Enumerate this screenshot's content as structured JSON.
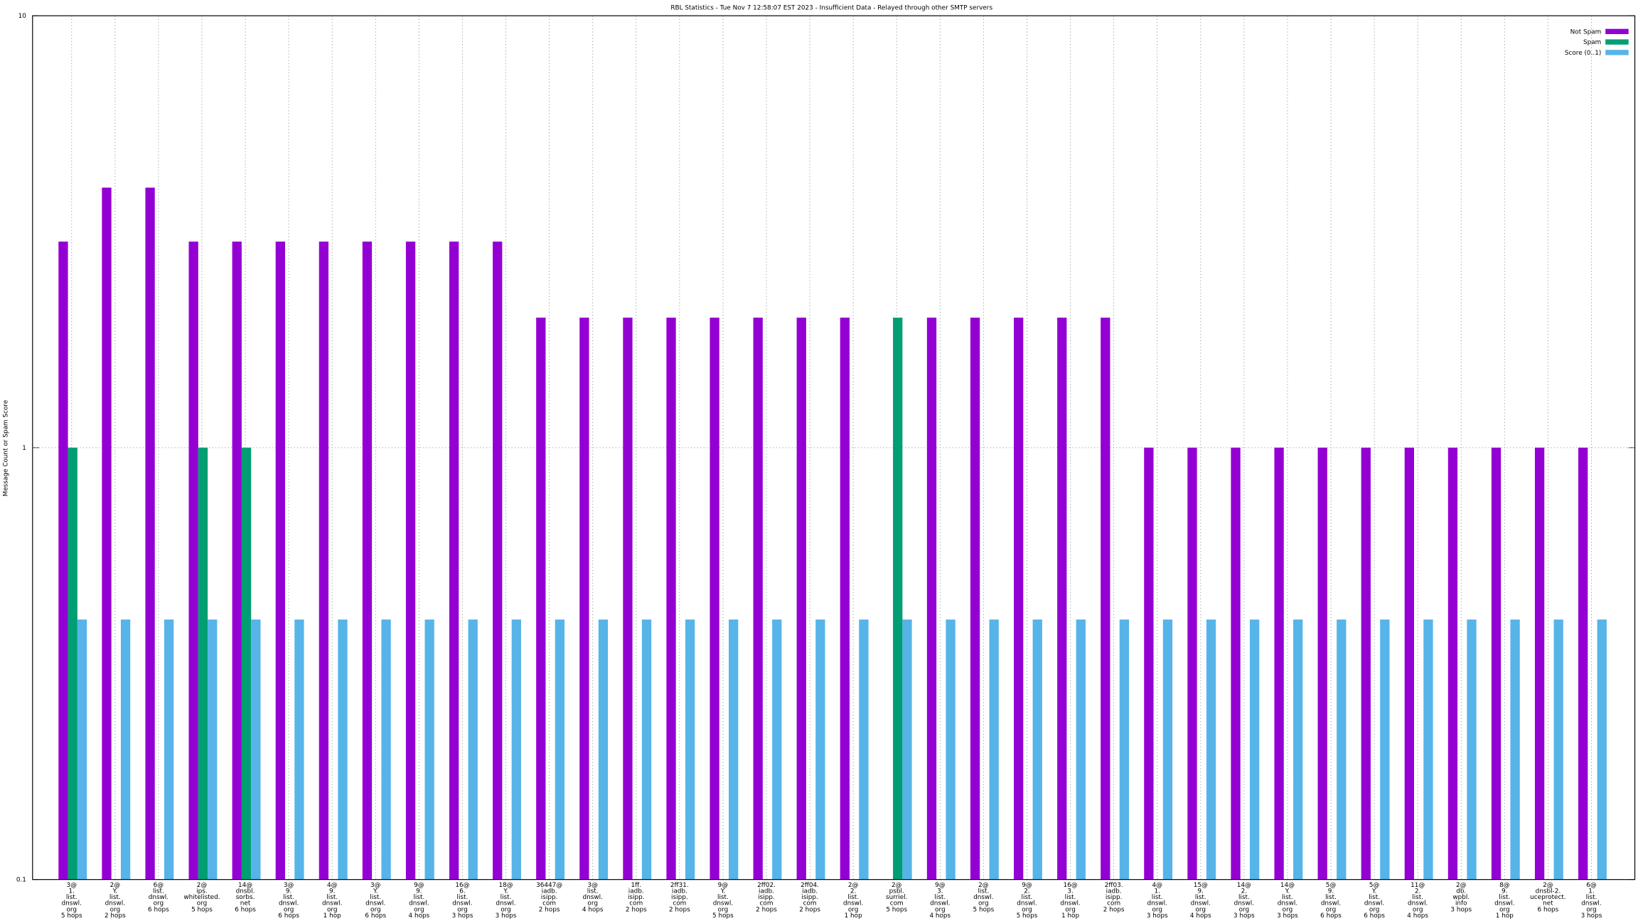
{
  "chart_data": {
    "type": "bar",
    "title": "RBL Statistics - Tue Nov  7 12:58:07 EST 2023 - Insufficient Data - Relayed through other SMTP servers",
    "y_label": "Message Count or Spam Score",
    "ylim": [
      0.1,
      10
    ],
    "yticks": [
      0.1,
      1,
      10
    ],
    "log_y": true,
    "grid": true,
    "legend": "top-right",
    "categories": [
      [
        "3@",
        "1.",
        "list.",
        "dnswl.",
        "org",
        "5 hops"
      ],
      [
        "2@",
        "Y.",
        "list.",
        "dnswl.",
        "org",
        "2 hops"
      ],
      [
        "6@",
        "list.",
        "dnswl.",
        "org",
        "6 hops"
      ],
      [
        "2@",
        "ips.",
        "whitelisted.",
        "org",
        "5 hops"
      ],
      [
        "14@",
        "dnsbl.",
        "sorbs.",
        "net",
        "6 hops"
      ],
      [
        "3@",
        "9.",
        "list.",
        "dnswl.",
        "org",
        "6 hops"
      ],
      [
        "4@",
        "9.",
        "list.",
        "dnswl.",
        "org",
        "1 hop"
      ],
      [
        "3@",
        "Y.",
        "list.",
        "dnswl.",
        "org",
        "6 hops"
      ],
      [
        "9@",
        "9.",
        "list.",
        "dnswl.",
        "org",
        "4 hops"
      ],
      [
        "16@",
        "6.",
        "list.",
        "dnswl.",
        "org",
        "3 hops"
      ],
      [
        "18@",
        "Y.",
        "list.",
        "dnswl.",
        "org",
        "3 hops"
      ],
      [
        "36447@",
        "iadb.",
        "isipp.",
        "com",
        "2 hops"
      ],
      [
        "3@",
        "list.",
        "dnswl.",
        "org",
        "4 hops"
      ],
      [
        "1ff.",
        "iadb.",
        "isipp.",
        "com",
        "2 hops"
      ],
      [
        "2ff31.",
        "iadb.",
        "isipp.",
        "com",
        "2 hops"
      ],
      [
        "9@",
        "Y.",
        "list.",
        "dnswl.",
        "org",
        "5 hops"
      ],
      [
        "2ff02.",
        "iadb.",
        "isipp.",
        "com",
        "2 hops"
      ],
      [
        "2ff04.",
        "iadb.",
        "isipp.",
        "com",
        "2 hops"
      ],
      [
        "2@",
        "2.",
        "list.",
        "dnswl.",
        "org",
        "1 hop"
      ],
      [
        "2@",
        "psbl.",
        "surriel.",
        "com",
        "5 hops"
      ],
      [
        "9@",
        "3.",
        "list.",
        "dnswl.",
        "org",
        "4 hops"
      ],
      [
        "2@",
        "list.",
        "dnswl.",
        "org",
        "5 hops"
      ],
      [
        "9@",
        "2.",
        "list.",
        "dnswl.",
        "org",
        "5 hops"
      ],
      [
        "16@",
        "3.",
        "list.",
        "dnswl.",
        "org",
        "1 hop"
      ],
      [
        "2ff03.",
        "iadb.",
        "isipp.",
        "com",
        "2 hops"
      ],
      [
        "4@",
        "1.",
        "list.",
        "dnswl.",
        "org",
        "3 hops"
      ],
      [
        "15@",
        "9.",
        "list.",
        "dnswl.",
        "org",
        "4 hops"
      ],
      [
        "14@",
        "2.",
        "list.",
        "dnswl.",
        "org",
        "3 hops"
      ],
      [
        "14@",
        "Y.",
        "list.",
        "dnswl.",
        "org",
        "3 hops"
      ],
      [
        "5@",
        "9.",
        "list.",
        "dnswl.",
        "org",
        "6 hops"
      ],
      [
        "5@",
        "Y.",
        "list.",
        "dnswl.",
        "org",
        "6 hops"
      ],
      [
        "11@",
        "2.",
        "list.",
        "dnswl.",
        "org",
        "4 hops"
      ],
      [
        "2@",
        "db.",
        "wpbl.",
        "info",
        "3 hops"
      ],
      [
        "8@",
        "9.",
        "list.",
        "dnswl.",
        "org",
        "1 hop"
      ],
      [
        "2@",
        "dnsbl-2.",
        "uceprotect.",
        "net",
        "6 hops"
      ],
      [
        "6@",
        "1.",
        "list.",
        "dnswl.",
        "org",
        "3 hops"
      ]
    ],
    "series": [
      {
        "name": "Not Spam",
        "color": "#9400d3",
        "values": [
          3,
          4,
          4,
          3,
          3,
          3,
          3,
          3,
          3,
          3,
          3,
          2,
          2,
          2,
          2,
          2,
          2,
          2,
          2,
          null,
          2,
          2,
          2,
          2,
          2,
          1,
          1,
          1,
          1,
          1,
          1,
          1,
          1,
          1,
          1,
          1
        ]
      },
      {
        "name": "Spam",
        "color": "#009e73",
        "values": [
          1,
          null,
          null,
          1,
          1,
          null,
          null,
          null,
          null,
          null,
          null,
          null,
          null,
          null,
          null,
          null,
          null,
          null,
          null,
          2,
          null,
          null,
          null,
          null,
          null,
          null,
          null,
          null,
          null,
          null,
          null,
          null,
          null,
          null,
          null,
          null
        ]
      },
      {
        "name": "Score (0..1)",
        "color": "#56b4e9",
        "values": [
          0.4,
          0.4,
          0.4,
          0.4,
          0.4,
          0.4,
          0.4,
          0.4,
          0.4,
          0.4,
          0.4,
          0.4,
          0.4,
          0.4,
          0.4,
          0.4,
          0.4,
          0.4,
          0.4,
          0.4,
          0.4,
          0.4,
          0.4,
          0.4,
          0.4,
          0.4,
          0.4,
          0.4,
          0.4,
          0.4,
          0.4,
          0.4,
          0.4,
          0.4,
          0.4,
          0.4
        ]
      }
    ]
  }
}
